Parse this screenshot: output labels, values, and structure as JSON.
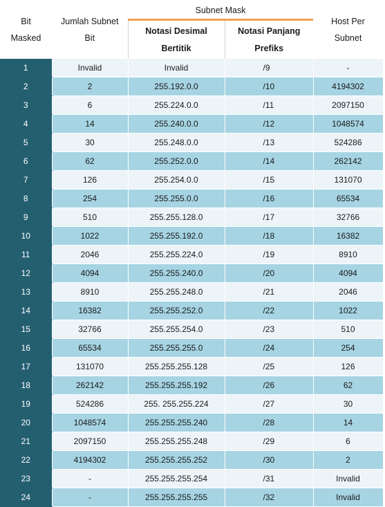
{
  "headers": {
    "bit_masked": [
      "Bit",
      "Masked"
    ],
    "subnet_bits": [
      "Jumlah Subnet",
      "Bit"
    ],
    "subnet_mask": "Subnet Mask",
    "dotted_decimal": [
      "Notasi Desimal",
      "Bertitik"
    ],
    "prefix_notation": [
      "Notasi Panjang",
      "Prefiks"
    ],
    "hosts_per_subnet": [
      "Host Per",
      "Subnet"
    ]
  },
  "colors": {
    "bit_column": "#245f70",
    "row_light": "#ecf4f8",
    "row_dark": "#a6d4e3",
    "group_rule": "#f0a050"
  },
  "rows": [
    {
      "bit": "1",
      "subnets": "Invalid",
      "mask": "Invalid",
      "prefix": "/9",
      "hosts": "-"
    },
    {
      "bit": "2",
      "subnets": "2",
      "mask": "255.192.0.0",
      "prefix": "/10",
      "hosts": "4194302"
    },
    {
      "bit": "3",
      "subnets": "6",
      "mask": "255.224.0.0",
      "prefix": "/11",
      "hosts": "2097150"
    },
    {
      "bit": "4",
      "subnets": "14",
      "mask": "255.240.0.0",
      "prefix": "/12",
      "hosts": "1048574"
    },
    {
      "bit": "5",
      "subnets": "30",
      "mask": "255.248.0.0",
      "prefix": "/13",
      "hosts": "524286"
    },
    {
      "bit": "6",
      "subnets": "62",
      "mask": "255.252.0.0",
      "prefix": "/14",
      "hosts": "262142"
    },
    {
      "bit": "7",
      "subnets": "126",
      "mask": "255.254.0.0",
      "prefix": "/15",
      "hosts": "131070"
    },
    {
      "bit": "8",
      "subnets": "254",
      "mask": "255.255.0.0",
      "prefix": "/16",
      "hosts": "65534"
    },
    {
      "bit": "9",
      "subnets": "510",
      "mask": "255.255.128.0",
      "prefix": "/17",
      "hosts": "32766"
    },
    {
      "bit": "10",
      "subnets": "1022",
      "mask": "255.255.192.0",
      "prefix": "/18",
      "hosts": "16382"
    },
    {
      "bit": "11",
      "subnets": "2046",
      "mask": "255.255.224.0",
      "prefix": "/19",
      "hosts": "8910"
    },
    {
      "bit": "12",
      "subnets": "4094",
      "mask": "255.255.240.0",
      "prefix": "/20",
      "hosts": "4094"
    },
    {
      "bit": "13",
      "subnets": "8910",
      "mask": "255.255.248.0",
      "prefix": "/21",
      "hosts": "2046"
    },
    {
      "bit": "14",
      "subnets": "16382",
      "mask": "255.255.252.0",
      "prefix": "/22",
      "hosts": "1022"
    },
    {
      "bit": "15",
      "subnets": "32766",
      "mask": "255.255.254.0",
      "prefix": "/23",
      "hosts": "510"
    },
    {
      "bit": "16",
      "subnets": "65534",
      "mask": "255.255.255.0",
      "prefix": "/24",
      "hosts": "254"
    },
    {
      "bit": "17",
      "subnets": "131070",
      "mask": "255.255.255.128",
      "prefix": "/25",
      "hosts": "126"
    },
    {
      "bit": "18",
      "subnets": "262142",
      "mask": "255.255.255.192",
      "prefix": "/26",
      "hosts": "62"
    },
    {
      "bit": "19",
      "subnets": "524286",
      "mask": "255. 255.255.224",
      "prefix": "/27",
      "hosts": "30"
    },
    {
      "bit": "20",
      "subnets": "1048574",
      "mask": "255.255.255.240",
      "prefix": "/28",
      "hosts": "14"
    },
    {
      "bit": "21",
      "subnets": "2097150",
      "mask": "255.255.255.248",
      "prefix": "/29",
      "hosts": "6"
    },
    {
      "bit": "22",
      "subnets": "4194302",
      "mask": "255.255.255.252",
      "prefix": "/30",
      "hosts": "2"
    },
    {
      "bit": "23",
      "subnets": "-",
      "mask": "255.255.255.254",
      "prefix": "/31",
      "hosts": "Invalid"
    },
    {
      "bit": "24",
      "subnets": "-",
      "mask": "255.255.255.255",
      "prefix": "/32",
      "hosts": "Invalid"
    }
  ]
}
